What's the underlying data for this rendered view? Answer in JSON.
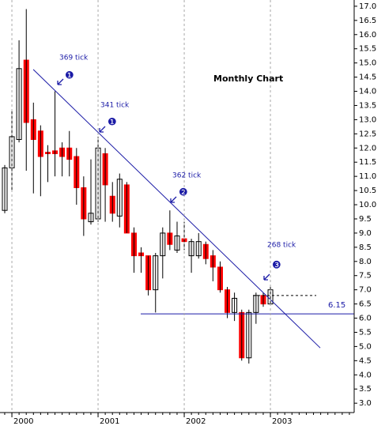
{
  "chart_data": {
    "type": "candlestick",
    "title": "Monthly Chart",
    "x": [
      1999.917,
      2000.0,
      2000.083,
      2000.167,
      2000.25,
      2000.333,
      2000.417,
      2000.5,
      2000.583,
      2000.667,
      2000.75,
      2000.833,
      2000.917,
      2001.0,
      2001.083,
      2001.167,
      2001.25,
      2001.333,
      2001.417,
      2001.5,
      2001.583,
      2001.667,
      2001.75,
      2001.833,
      2001.917,
      2002.0,
      2002.083,
      2002.167,
      2002.25,
      2002.333,
      2002.417,
      2002.5,
      2002.583,
      2002.667,
      2002.75,
      2002.833,
      2002.917,
      2003.0
    ],
    "open": [
      9.8,
      11.3,
      12.3,
      15.1,
      13.0,
      12.6,
      11.85,
      11.9,
      12.0,
      12.0,
      11.7,
      10.6,
      9.4,
      9.5,
      11.8,
      10.3,
      9.6,
      10.7,
      9.0,
      8.3,
      8.2,
      7.0,
      8.2,
      9.0,
      8.4,
      8.8,
      8.2,
      8.2,
      8.6,
      8.2,
      7.8,
      7.0,
      6.2,
      6.2,
      4.6,
      6.2,
      6.8,
      6.5
    ],
    "high": [
      11.4,
      13.3,
      15.8,
      16.9,
      13.6,
      12.8,
      12.1,
      14.0,
      12.2,
      12.6,
      12.0,
      11.0,
      11.6,
      12.4,
      12.0,
      10.8,
      11.1,
      10.8,
      9.2,
      8.5,
      8.2,
      8.3,
      9.2,
      9.8,
      9.4,
      9.4,
      8.8,
      9.0,
      8.7,
      8.4,
      8.0,
      7.1,
      6.9,
      6.3,
      6.3,
      6.9,
      6.9,
      7.1
    ],
    "low": [
      9.7,
      10.5,
      12.2,
      11.2,
      10.4,
      10.3,
      10.8,
      11.0,
      11.0,
      11.0,
      10.0,
      8.9,
      9.3,
      9.4,
      9.4,
      9.4,
      9.2,
      9.0,
      7.6,
      7.6,
      6.8,
      6.2,
      7.4,
      8.4,
      8.3,
      8.4,
      7.6,
      8.1,
      7.9,
      7.3,
      6.9,
      6.0,
      5.9,
      4.5,
      4.4,
      5.8,
      6.4,
      6.5
    ],
    "close": [
      11.3,
      12.4,
      14.8,
      12.9,
      12.3,
      11.7,
      11.8,
      11.8,
      11.7,
      11.6,
      10.6,
      9.5,
      9.7,
      12.0,
      10.7,
      9.7,
      10.9,
      9.0,
      8.2,
      8.2,
      7.0,
      8.2,
      9.0,
      8.6,
      8.9,
      8.7,
      8.7,
      8.7,
      8.1,
      7.8,
      7.0,
      6.2,
      6.7,
      4.6,
      6.2,
      6.8,
      6.5,
      7.0
    ],
    "up_color": "#ffffff",
    "down_color": "#ff0000",
    "xlim": [
      1999.862,
      2003.972
    ],
    "xticks": [
      2000,
      2001,
      2002,
      2003
    ],
    "ylim": [
      2.67,
      17.22
    ],
    "yticks": [
      {
        "value": 3,
        "label": "3.0"
      },
      {
        "value": 3.5,
        "label": "3.5"
      },
      {
        "value": 4,
        "label": "4.0"
      },
      {
        "value": 4.5,
        "label": "4.5"
      },
      {
        "value": 5,
        "label": "5.0"
      },
      {
        "value": 5.5,
        "label": "5.5"
      },
      {
        "value": 6,
        "label": "6.0"
      },
      {
        "value": 6.5,
        "label": "6.5"
      },
      {
        "value": 7,
        "label": "7.0"
      },
      {
        "value": 7.5,
        "label": "7.5"
      },
      {
        "value": 8,
        "label": "8.0"
      },
      {
        "value": 8.5,
        "label": "8.5"
      },
      {
        "value": 9,
        "label": "9.0"
      },
      {
        "value": 9.5,
        "label": "9.5"
      },
      {
        "value": 10,
        "label": "10.0"
      },
      {
        "value": 10.5,
        "label": "10.5"
      },
      {
        "value": 11,
        "label": "11.0"
      },
      {
        "value": 11.5,
        "label": "11.5"
      },
      {
        "value": 12,
        "label": "12.0"
      },
      {
        "value": 12.5,
        "label": "12.5"
      },
      {
        "value": 13,
        "label": "13.0"
      },
      {
        "value": 13.5,
        "label": "13.5"
      },
      {
        "value": 14,
        "label": "14.0"
      },
      {
        "value": 14.5,
        "label": "14.5"
      },
      {
        "value": 15,
        "label": "15.0"
      },
      {
        "value": 15.5,
        "label": "15.5"
      },
      {
        "value": 16,
        "label": "16.0"
      },
      {
        "value": 16.5,
        "label": "16.5"
      },
      {
        "value": 17,
        "label": "17.0"
      }
    ],
    "trendline": {
      "x": [
        2000.248,
        2003.578
      ],
      "y": [
        14.77,
        4.95
      ],
      "color": "#1a1aa6"
    },
    "support": {
      "value": 6.15,
      "x": [
        2001.495,
        2003.972
      ],
      "color": "#1a1aa6"
    },
    "resistance": {
      "value": 6.8,
      "x": [
        2002.798,
        2003.532
      ]
    },
    "annotations": [
      "369 tick",
      "341 tick",
      "362 tick",
      "268 tick"
    ],
    "markers": [
      "❶",
      "❶",
      "❷",
      "❸"
    ]
  }
}
